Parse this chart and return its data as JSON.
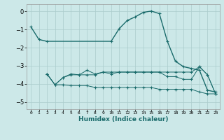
{
  "xlabel": "Humidex (Indice chaleur)",
  "ylabel": "",
  "xlim": [
    -0.5,
    23.5
  ],
  "ylim": [
    -5.4,
    0.4
  ],
  "yticks": [
    0,
    -1,
    -2,
    -3,
    -4,
    -5
  ],
  "xtick_labels": [
    "0",
    "1",
    "2",
    "3",
    "4",
    "5",
    "6",
    "7",
    "8",
    "9",
    "10",
    "11",
    "12",
    "13",
    "14",
    "15",
    "16",
    "17",
    "18",
    "19",
    "20",
    "21",
    "22",
    "23"
  ],
  "bg_color": "#cce8e8",
  "grid_color": "#aacccc",
  "line_color": "#1a6b6b",
  "lines": [
    {
      "x": [
        0,
        1,
        2,
        10,
        11,
        12,
        13,
        14,
        15,
        16,
        17,
        18,
        19,
        20,
        21,
        22,
        23
      ],
      "y": [
        -0.85,
        -1.55,
        -1.65,
        -1.65,
        -0.95,
        -0.5,
        -0.3,
        -0.05,
        0.02,
        -0.12,
        -1.65,
        -2.75,
        -3.05,
        -3.15,
        -3.25,
        -4.35,
        -4.45
      ]
    },
    {
      "x": [
        2,
        3,
        4,
        5,
        6,
        7,
        8,
        9,
        10,
        11,
        12,
        13,
        14,
        15,
        16,
        17,
        18,
        19,
        20,
        21,
        22,
        23
      ],
      "y": [
        -3.45,
        -4.05,
        -4.05,
        -4.1,
        -4.1,
        -4.1,
        -4.2,
        -4.2,
        -4.2,
        -4.2,
        -4.2,
        -4.2,
        -4.2,
        -4.2,
        -4.3,
        -4.3,
        -4.3,
        -4.3,
        -4.3,
        -4.45,
        -4.55,
        -4.55
      ]
    },
    {
      "x": [
        2,
        3,
        4,
        5,
        6,
        7,
        8,
        9,
        10,
        11,
        12,
        13,
        14,
        15,
        16,
        17,
        18,
        19,
        20,
        21,
        22,
        23
      ],
      "y": [
        -3.45,
        -4.05,
        -3.65,
        -3.45,
        -3.5,
        -3.25,
        -3.45,
        -3.35,
        -3.45,
        -3.35,
        -3.35,
        -3.35,
        -3.35,
        -3.35,
        -3.35,
        -3.6,
        -3.6,
        -3.75,
        -3.75,
        -3.05,
        -3.5,
        -4.55
      ]
    },
    {
      "x": [
        2,
        3,
        4,
        5,
        6,
        7,
        8,
        9,
        10,
        11,
        12,
        13,
        14,
        15,
        16,
        17,
        18,
        19,
        20,
        21,
        22,
        23
      ],
      "y": [
        -3.45,
        -4.05,
        -3.65,
        -3.5,
        -3.5,
        -3.5,
        -3.5,
        -3.35,
        -3.35,
        -3.35,
        -3.35,
        -3.35,
        -3.35,
        -3.35,
        -3.35,
        -3.35,
        -3.35,
        -3.35,
        -3.35,
        -3.05,
        -3.5,
        -4.55
      ]
    }
  ]
}
